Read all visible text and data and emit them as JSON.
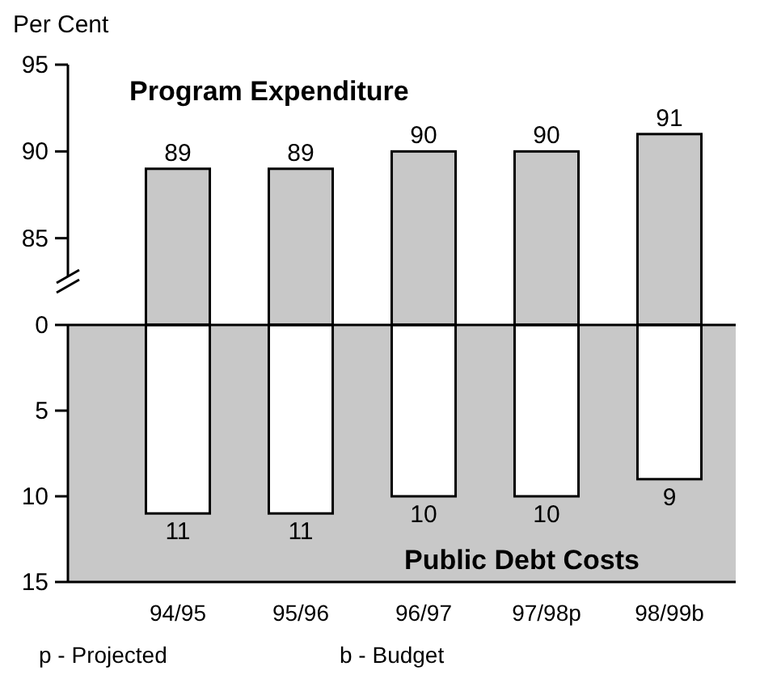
{
  "chart_data": [
    {
      "type": "bar",
      "ylabel": "Per Cent",
      "categories": [
        null,
        null,
        null,
        null,
        null
      ],
      "values": [
        89,
        89,
        90,
        90,
        91
      ],
      "color": "#c8c8c8",
      "ylim": [
        80,
        95
      ],
      "yticks": [
        85,
        90,
        95
      ],
      "data_labels": true,
      "annotations": [
        "Program Expenditure"
      ]
    },
    {
      "type": "bar",
      "categories": [
        "94/95",
        "95/96",
        "96/97",
        "97/98p",
        "98/99b"
      ],
      "values": [
        11,
        11,
        10,
        10,
        9
      ],
      "color": "#ffffff",
      "ylim": [
        15,
        0
      ],
      "yticks": [
        0,
        5,
        10,
        15
      ],
      "data_labels": true,
      "annotations": [
        "Public Debt Costs",
        "p - Projected",
        "b - Budget"
      ]
    }
  ]
}
